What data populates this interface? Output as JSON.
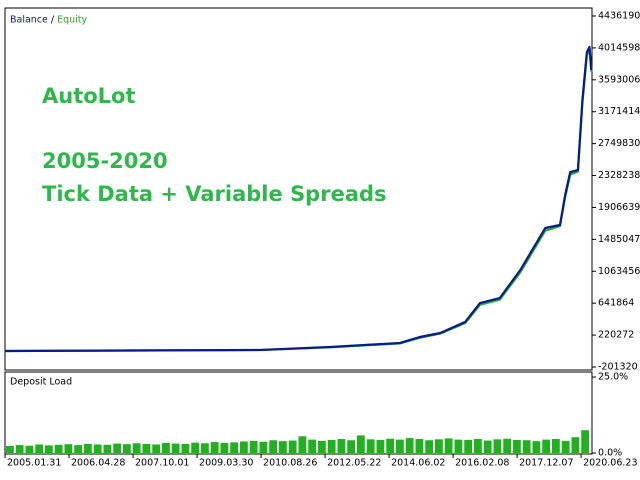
{
  "chart_data": [
    {
      "type": "line",
      "legend_separator": "/",
      "annotations": [
        "AutoLot",
        "2005-2020",
        "Tick Data + Variable Spreads"
      ],
      "annotation_color": "#2db84a",
      "x": [
        0,
        4.0,
        5.08,
        6.17,
        6.48,
        6.8,
        7.19,
        7.42,
        7.73,
        8.05,
        8.44,
        8.67,
        8.75,
        8.83,
        8.95,
        9.02,
        9.09,
        9.13,
        9.16
      ],
      "series": [
        {
          "name": "Balance",
          "color": "#0a1a8c",
          "values": [
            10000,
            24000,
            63000,
            116000,
            195000,
            248000,
            394000,
            644000,
            710000,
            1080000,
            1635000,
            1675000,
            2070000,
            2375000,
            2400000,
            3326000,
            3960000,
            4027000,
            3723000
          ]
        },
        {
          "name": "Equity",
          "color": "#22b022",
          "values": [
            10000,
            23000,
            60000,
            110000,
            185000,
            240000,
            380000,
            620000,
            690000,
            1050000,
            1600000,
            1660000,
            2040000,
            2340000,
            2380000,
            3280000,
            3920000,
            4010000,
            3700000
          ]
        }
      ],
      "xlim": [
        0,
        9.17
      ],
      "xticks": [
        {
          "value": 0,
          "label": "2005.01.31"
        },
        {
          "value": 1,
          "label": "2006.04.28"
        },
        {
          "value": 2,
          "label": "2007.10.01"
        },
        {
          "value": 3,
          "label": "2009.03.30"
        },
        {
          "value": 4,
          "label": "2010.08.26"
        },
        {
          "value": 5,
          "label": "2012.05.22"
        },
        {
          "value": 6,
          "label": "2014.06.02"
        },
        {
          "value": 7,
          "label": "2016.02.08"
        },
        {
          "value": 8,
          "label": "2017.12.07"
        },
        {
          "value": 9,
          "label": "2020.06.23"
        }
      ],
      "ylim": [
        -201320,
        4436190
      ],
      "yticks": [
        4436190,
        4014598,
        3593006,
        3171414,
        2749830,
        2328238,
        1906639,
        1485047,
        1063456,
        641864,
        220272,
        -201320
      ]
    },
    {
      "type": "bar",
      "title": "Deposit Load",
      "color": "#22b022",
      "categories": [
        null,
        null,
        null,
        null,
        null,
        null,
        null,
        null,
        null,
        null,
        null,
        null,
        null,
        null,
        null,
        null,
        null,
        null,
        null,
        null,
        null,
        null,
        null,
        null,
        null,
        null,
        null,
        null,
        null,
        null,
        null,
        null,
        null,
        null,
        null,
        null,
        null,
        null,
        null,
        null,
        null,
        null,
        null,
        null,
        null,
        null,
        null,
        null,
        null,
        null,
        null,
        null,
        null,
        null,
        null,
        null,
        null,
        null,
        null,
        null
      ],
      "values": [
        2.3,
        2.6,
        2.4,
        2.8,
        2.5,
        2.7,
        2.9,
        2.6,
        3.0,
        2.8,
        2.7,
        3.1,
        2.9,
        3.2,
        3.0,
        2.8,
        3.3,
        3.1,
        3.0,
        3.4,
        3.2,
        3.6,
        3.3,
        3.5,
        3.8,
        4.0,
        3.7,
        4.2,
        3.9,
        4.1,
        5.5,
        4.4,
        4.0,
        4.3,
        4.6,
        4.2,
        5.8,
        4.5,
        4.3,
        4.7,
        4.4,
        4.9,
        4.6,
        4.2,
        4.5,
        4.8,
        4.4,
        4.3,
        4.6,
        4.1,
        4.5,
        4.7,
        4.3,
        4.2,
        3.9,
        4.4,
        4.6,
        4.0,
        5.2,
        7.5
      ],
      "ylim": [
        0,
        25
      ],
      "yticks": [
        {
          "value": 25,
          "label": "25.0%"
        },
        {
          "value": 0,
          "label": "0.0%"
        }
      ]
    }
  ]
}
